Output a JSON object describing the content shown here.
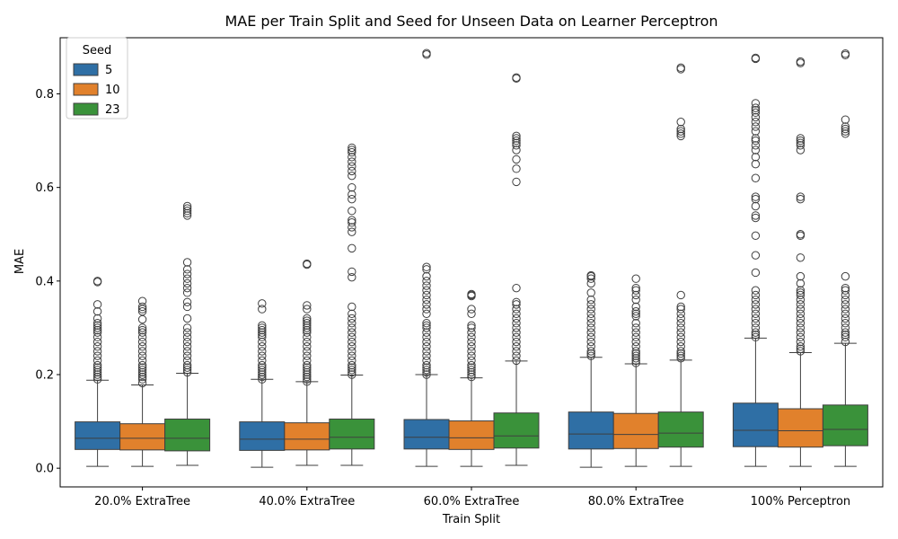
{
  "chart_data": {
    "type": "box",
    "title": "MAE per Train Split and Seed for Unseen Data on Learner Perceptron",
    "xlabel": "Train Split",
    "ylabel": "MAE",
    "ylim": [
      -0.04,
      0.92
    ],
    "yticks": [
      0.0,
      0.2,
      0.4,
      0.6,
      0.8
    ],
    "categories": [
      "20.0% ExtraTree",
      "40.0% ExtraTree",
      "60.0% ExtraTree",
      "80.0% ExtraTree",
      "100% Perceptron"
    ],
    "legend": {
      "title": "Seed",
      "placement": "top-left"
    },
    "series": [
      {
        "name": "5",
        "color": "#2f6fa5",
        "boxes": [
          {
            "min": 0.004,
            "q1": 0.04,
            "median": 0.064,
            "q3": 0.099,
            "max": 0.188,
            "outliers": [
              0.19,
              0.195,
              0.2,
              0.205,
              0.21,
              0.215,
              0.22,
              0.23,
              0.24,
              0.25,
              0.26,
              0.27,
              0.28,
              0.29,
              0.295,
              0.3,
              0.305,
              0.31,
              0.32,
              0.335,
              0.35,
              0.398,
              0.4
            ]
          },
          {
            "min": 0.002,
            "q1": 0.038,
            "median": 0.062,
            "q3": 0.099,
            "max": 0.19,
            "outliers": [
              0.19,
              0.195,
              0.2,
              0.205,
              0.21,
              0.215,
              0.22,
              0.23,
              0.24,
              0.25,
              0.26,
              0.27,
              0.28,
              0.285,
              0.29,
              0.295,
              0.3,
              0.305,
              0.34,
              0.352
            ]
          },
          {
            "min": 0.004,
            "q1": 0.041,
            "median": 0.066,
            "q3": 0.104,
            "max": 0.2,
            "outliers": [
              0.2,
              0.205,
              0.21,
              0.215,
              0.22,
              0.23,
              0.24,
              0.25,
              0.26,
              0.27,
              0.28,
              0.29,
              0.3,
              0.305,
              0.31,
              0.33,
              0.34,
              0.35,
              0.36,
              0.37,
              0.38,
              0.39,
              0.4,
              0.41,
              0.425,
              0.43,
              0.884,
              0.887
            ]
          },
          {
            "min": 0.002,
            "q1": 0.041,
            "median": 0.073,
            "q3": 0.12,
            "max": 0.237,
            "outliers": [
              0.24,
              0.245,
              0.25,
              0.26,
              0.27,
              0.28,
              0.29,
              0.3,
              0.31,
              0.32,
              0.33,
              0.34,
              0.35,
              0.36,
              0.375,
              0.395,
              0.405,
              0.41,
              0.412
            ]
          },
          {
            "min": 0.004,
            "q1": 0.046,
            "median": 0.081,
            "q3": 0.139,
            "max": 0.278,
            "outliers": [
              0.28,
              0.285,
              0.29,
              0.3,
              0.31,
              0.32,
              0.33,
              0.34,
              0.35,
              0.36,
              0.37,
              0.38,
              0.418,
              0.455,
              0.497,
              0.535,
              0.54,
              0.56,
              0.575,
              0.58,
              0.62,
              0.65,
              0.665,
              0.68,
              0.69,
              0.7,
              0.705,
              0.72,
              0.73,
              0.74,
              0.75,
              0.76,
              0.765,
              0.77,
              0.78,
              0.875,
              0.877
            ]
          }
        ]
      },
      {
        "name": "10",
        "color": "#e1812c",
        "boxes": [
          {
            "min": 0.004,
            "q1": 0.039,
            "median": 0.064,
            "q3": 0.095,
            "max": 0.178,
            "outliers": [
              0.182,
              0.19,
              0.195,
              0.2,
              0.205,
              0.21,
              0.215,
              0.22,
              0.23,
              0.24,
              0.25,
              0.26,
              0.27,
              0.28,
              0.29,
              0.295,
              0.3,
              0.318,
              0.335,
              0.34,
              0.345,
              0.357
            ]
          },
          {
            "min": 0.006,
            "q1": 0.039,
            "median": 0.062,
            "q3": 0.097,
            "max": 0.185,
            "outliers": [
              0.185,
              0.19,
              0.195,
              0.2,
              0.205,
              0.21,
              0.215,
              0.22,
              0.23,
              0.24,
              0.25,
              0.26,
              0.27,
              0.28,
              0.29,
              0.295,
              0.3,
              0.305,
              0.31,
              0.315,
              0.32,
              0.34,
              0.348,
              0.435,
              0.437
            ]
          },
          {
            "min": 0.004,
            "q1": 0.04,
            "median": 0.065,
            "q3": 0.101,
            "max": 0.193,
            "outliers": [
              0.195,
              0.2,
              0.205,
              0.21,
              0.215,
              0.22,
              0.23,
              0.24,
              0.25,
              0.26,
              0.27,
              0.28,
              0.29,
              0.3,
              0.305,
              0.33,
              0.34,
              0.368,
              0.37,
              0.372
            ]
          },
          {
            "min": 0.004,
            "q1": 0.042,
            "median": 0.072,
            "q3": 0.117,
            "max": 0.223,
            "outliers": [
              0.225,
              0.23,
              0.235,
              0.24,
              0.245,
              0.25,
              0.26,
              0.27,
              0.28,
              0.29,
              0.3,
              0.31,
              0.325,
              0.33,
              0.335,
              0.345,
              0.36,
              0.37,
              0.38,
              0.385,
              0.405
            ]
          },
          {
            "min": 0.004,
            "q1": 0.045,
            "median": 0.08,
            "q3": 0.127,
            "max": 0.247,
            "outliers": [
              0.25,
              0.255,
              0.26,
              0.27,
              0.28,
              0.29,
              0.3,
              0.31,
              0.32,
              0.33,
              0.34,
              0.35,
              0.36,
              0.37,
              0.375,
              0.38,
              0.395,
              0.41,
              0.45,
              0.497,
              0.5,
              0.575,
              0.58,
              0.68,
              0.69,
              0.695,
              0.7,
              0.705,
              0.866,
              0.869
            ]
          }
        ]
      },
      {
        "name": "23",
        "color": "#3a923a",
        "boxes": [
          {
            "min": 0.006,
            "q1": 0.037,
            "median": 0.064,
            "q3": 0.105,
            "max": 0.203,
            "outliers": [
              0.205,
              0.21,
              0.215,
              0.22,
              0.23,
              0.24,
              0.25,
              0.26,
              0.27,
              0.28,
              0.29,
              0.3,
              0.32,
              0.345,
              0.355,
              0.375,
              0.385,
              0.395,
              0.405,
              0.415,
              0.425,
              0.44,
              0.54,
              0.545,
              0.55,
              0.555,
              0.56
            ]
          },
          {
            "min": 0.006,
            "q1": 0.041,
            "median": 0.066,
            "q3": 0.105,
            "max": 0.199,
            "outliers": [
              0.2,
              0.205,
              0.21,
              0.215,
              0.22,
              0.23,
              0.24,
              0.25,
              0.26,
              0.27,
              0.28,
              0.29,
              0.3,
              0.31,
              0.32,
              0.33,
              0.345,
              0.408,
              0.42,
              0.47,
              0.505,
              0.515,
              0.525,
              0.53,
              0.55,
              0.575,
              0.585,
              0.6,
              0.625,
              0.635,
              0.645,
              0.655,
              0.665,
              0.675,
              0.68,
              0.685
            ]
          },
          {
            "min": 0.006,
            "q1": 0.043,
            "median": 0.069,
            "q3": 0.118,
            "max": 0.229,
            "outliers": [
              0.23,
              0.24,
              0.25,
              0.26,
              0.27,
              0.28,
              0.29,
              0.3,
              0.31,
              0.32,
              0.33,
              0.34,
              0.35,
              0.355,
              0.385,
              0.612,
              0.64,
              0.66,
              0.68,
              0.69,
              0.695,
              0.7,
              0.705,
              0.71,
              0.833,
              0.835
            ]
          },
          {
            "min": 0.004,
            "q1": 0.045,
            "median": 0.075,
            "q3": 0.12,
            "max": 0.231,
            "outliers": [
              0.235,
              0.24,
              0.245,
              0.25,
              0.26,
              0.27,
              0.28,
              0.29,
              0.3,
              0.31,
              0.32,
              0.33,
              0.34,
              0.345,
              0.37,
              0.71,
              0.715,
              0.72,
              0.725,
              0.74,
              0.853,
              0.856
            ]
          },
          {
            "min": 0.004,
            "q1": 0.048,
            "median": 0.083,
            "q3": 0.135,
            "max": 0.267,
            "outliers": [
              0.27,
              0.28,
              0.285,
              0.29,
              0.3,
              0.31,
              0.32,
              0.33,
              0.34,
              0.35,
              0.36,
              0.37,
              0.38,
              0.385,
              0.41,
              0.715,
              0.72,
              0.725,
              0.73,
              0.745,
              0.883,
              0.886
            ]
          }
        ]
      }
    ]
  }
}
